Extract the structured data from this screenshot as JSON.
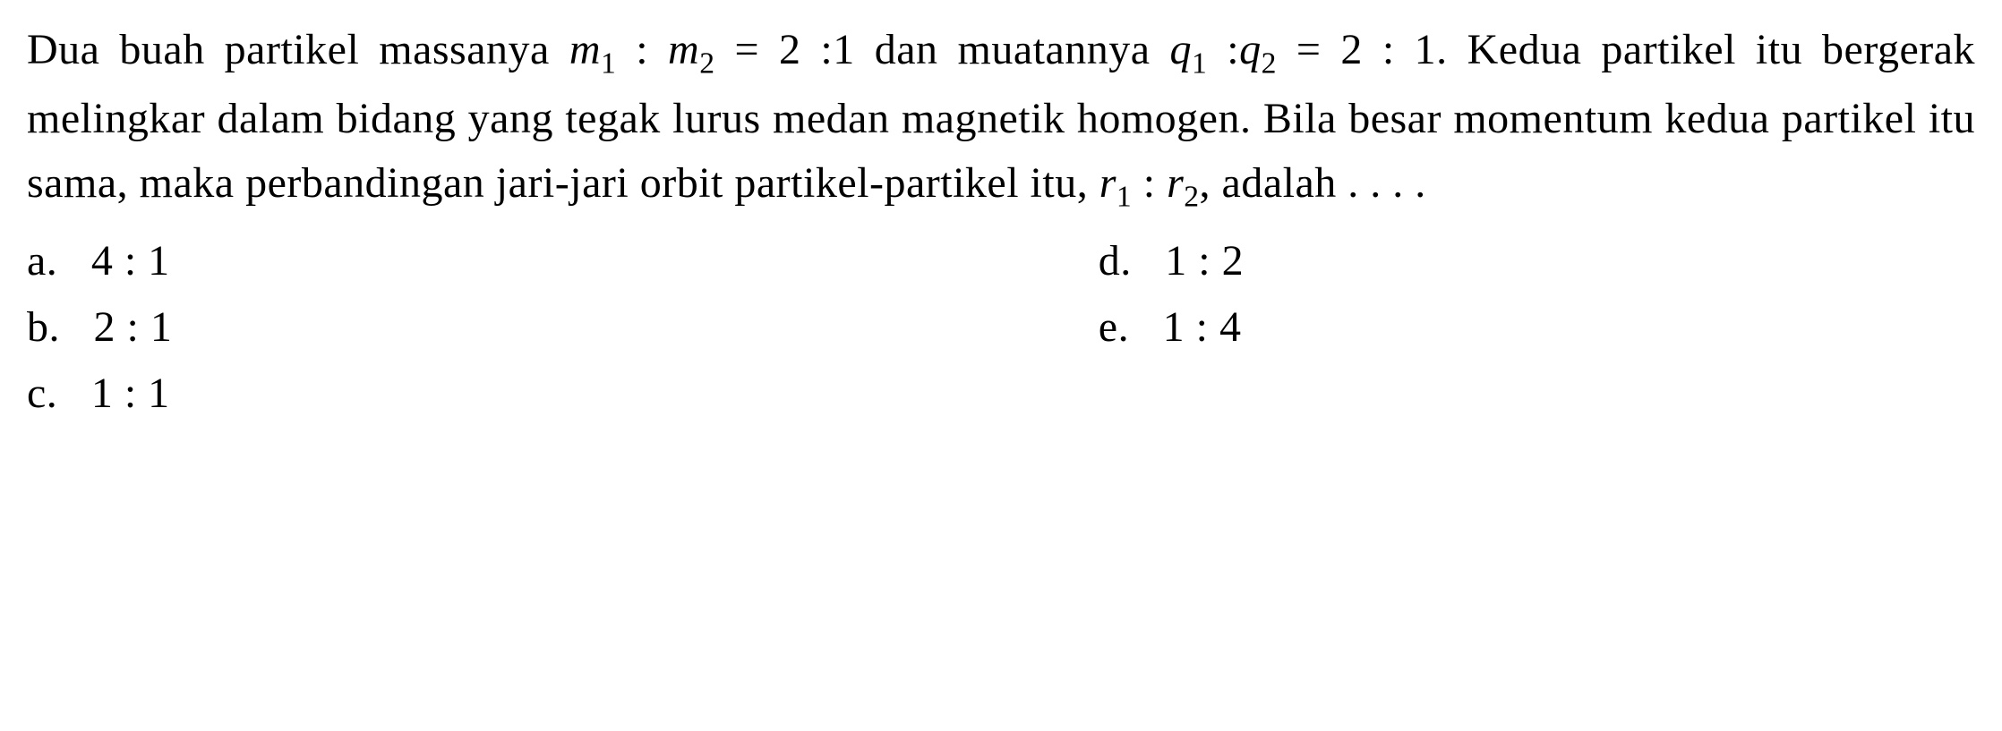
{
  "question": {
    "line1_part1": "Dua buah partikel massanya ",
    "line1_m1": "m",
    "line1_sub1": "1",
    "line1_colon1": " : ",
    "line1_m2": "m",
    "line1_sub2": "2",
    "line1_part2": " = 2 :1 dan muatannya",
    "line2_q1": "q",
    "line2_sub1": "1",
    "line2_colon1": " :",
    "line2_q2": "q",
    "line2_sub2": "2",
    "line2_part2": " = 2 : 1. Kedua partikel itu bergerak melingkar dalam bidang yang tegak lurus medan magnetik homogen. Bila besar momentum kedua partikel itu sama, maka perbandingan jari-jari orbit partikel-partikel itu, ",
    "line5_r1": "r",
    "line5_sub1": "1",
    "line5_colon2": " : ",
    "line5_r2": "r",
    "line5_sub2": "2",
    "line5_end": ", adalah . . . ."
  },
  "options": {
    "a": {
      "label": "a.",
      "value": "4 : 1"
    },
    "b": {
      "label": "b.",
      "value": "2 : 1"
    },
    "c": {
      "label": "c.",
      "value": "1 : 1"
    },
    "d": {
      "label": "d.",
      "value": "1 : 2"
    },
    "e": {
      "label": "e.",
      "value": "1 : 4"
    }
  },
  "style": {
    "font_size": 48,
    "line_height": 1.5,
    "text_color": "#000000",
    "background_color": "#ffffff"
  }
}
